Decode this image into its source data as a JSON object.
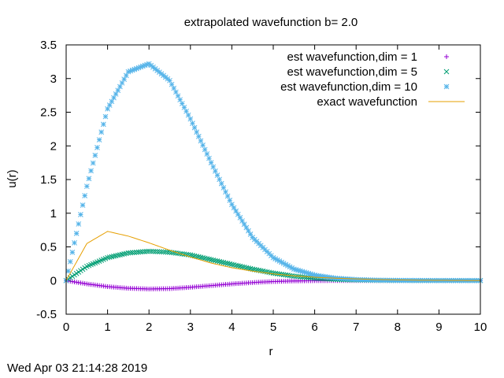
{
  "timestamp": "Wed Apr 03 21:14:28 2019",
  "chart_data": {
    "type": "scatter",
    "title": "extrapolated wavefunction b= 2.0",
    "xlabel": "r",
    "ylabel": "u(r)",
    "xlim": [
      0,
      10
    ],
    "ylim": [
      -0.5,
      3.5
    ],
    "xticks": [
      0,
      1,
      2,
      3,
      4,
      5,
      6,
      7,
      8,
      9,
      10
    ],
    "yticks": [
      -0.5,
      0,
      0.5,
      1,
      1.5,
      2,
      2.5,
      3,
      3.5
    ],
    "x_tick_labels": [
      "0",
      "1",
      "2",
      "3",
      "4",
      "5",
      "6",
      "7",
      "8",
      "9",
      "10"
    ],
    "y_tick_labels": [
      "-0.5",
      "0",
      "0.5",
      "1",
      "1.5",
      "2",
      "2.5",
      "3",
      "3.5"
    ],
    "grid": false,
    "legend_position": "top-right",
    "x": [
      0,
      0.5,
      1,
      1.5,
      2,
      2.5,
      3,
      3.5,
      4,
      4.5,
      5,
      5.5,
      6,
      6.5,
      7,
      7.5,
      8,
      8.5,
      9,
      9.5,
      10
    ],
    "series": [
      {
        "name": "est wavefunction,dim = 1",
        "marker": "plus",
        "color": "#9400d3",
        "values": [
          0,
          -0.05,
          -0.09,
          -0.115,
          -0.125,
          -0.12,
          -0.1,
          -0.075,
          -0.05,
          -0.03,
          -0.015,
          -0.006,
          -0.002,
          0,
          0,
          0,
          0,
          0,
          0,
          0,
          0
        ]
      },
      {
        "name": "est wavefunction,dim = 5",
        "marker": "cross",
        "color": "#009e73",
        "values": [
          0,
          0.21,
          0.34,
          0.41,
          0.435,
          0.42,
          0.38,
          0.31,
          0.24,
          0.17,
          0.11,
          0.065,
          0.035,
          0.017,
          0.008,
          0.003,
          0.001,
          0,
          0,
          0,
          0
        ]
      },
      {
        "name": "est wavefunction,dim = 10",
        "marker": "star",
        "color": "#56b4e9",
        "values": [
          0,
          1.4,
          2.55,
          3.1,
          3.22,
          2.97,
          2.4,
          1.75,
          1.13,
          0.64,
          0.34,
          0.17,
          0.08,
          0.035,
          0.015,
          0.006,
          0.002,
          0.001,
          0,
          0,
          0
        ]
      },
      {
        "name": "exact wavefunction",
        "marker": "line",
        "color": "#e69f00",
        "values": [
          0,
          0.55,
          0.73,
          0.66,
          0.56,
          0.45,
          0.35,
          0.26,
          0.19,
          0.14,
          0.1,
          0.07,
          0.05,
          0.035,
          0.025,
          0.015,
          0.01,
          0.005,
          0.003,
          0.001,
          0
        ]
      }
    ]
  }
}
